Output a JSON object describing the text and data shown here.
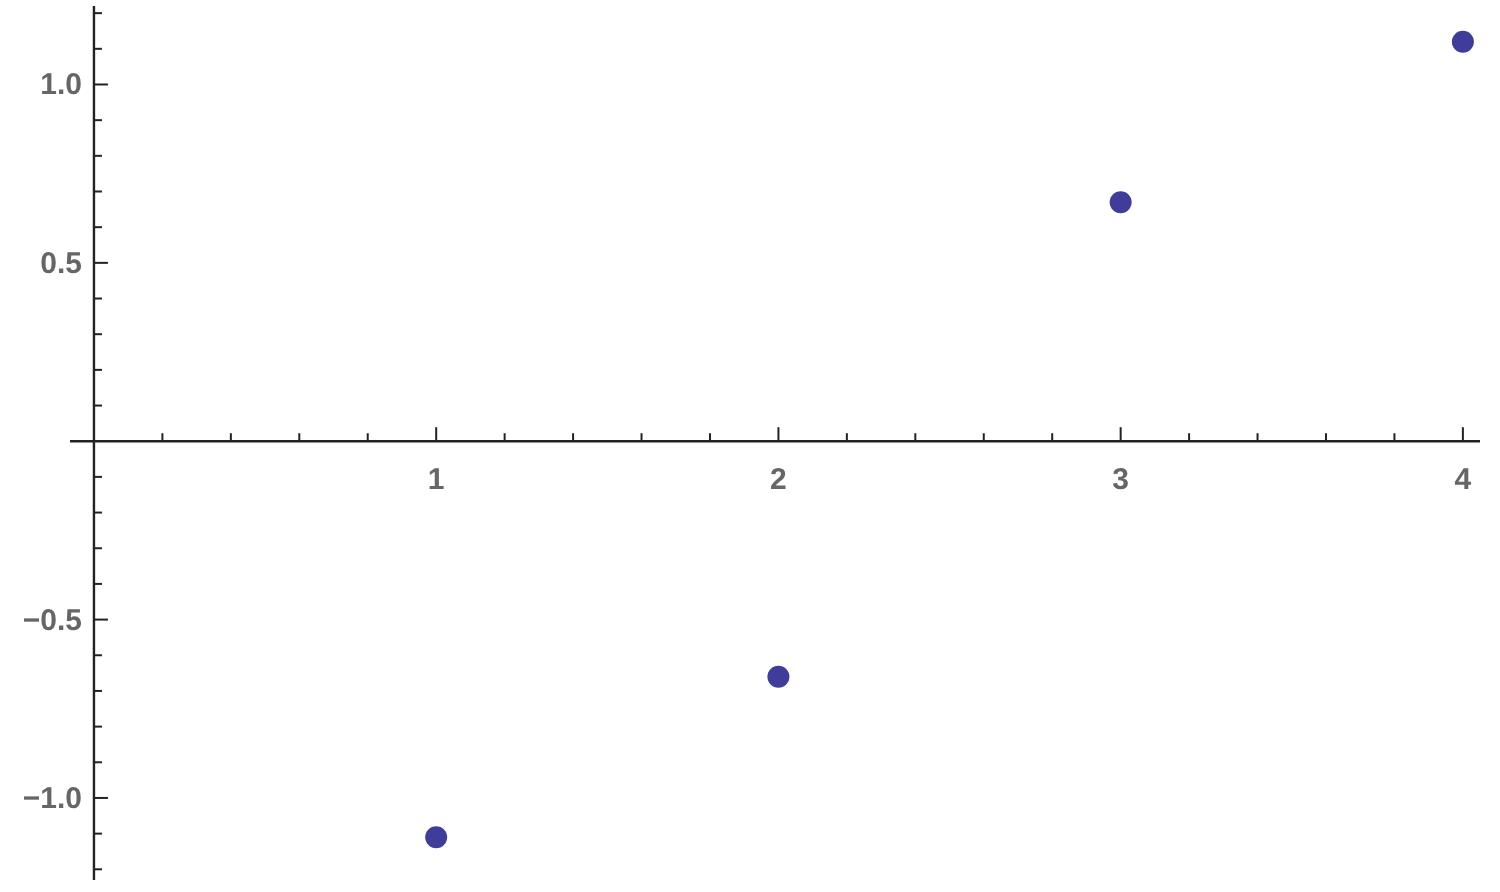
{
  "chart_data": {
    "type": "scatter",
    "x": [
      1,
      2,
      3,
      4
    ],
    "series": [
      {
        "color": "#3f3d99",
        "values": [
          -1.11,
          -0.66,
          0.67,
          1.12
        ]
      }
    ],
    "marker": "circle",
    "xlim": [
      -0.07,
      4.05
    ],
    "ylim": [
      -1.23,
      1.22
    ],
    "xticks": [
      {
        "value": 0.2,
        "label": null
      },
      {
        "value": 0.4,
        "label": null
      },
      {
        "value": 0.6,
        "label": null
      },
      {
        "value": 0.8,
        "label": null
      },
      1,
      {
        "value": 1.2,
        "label": null
      },
      {
        "value": 1.4,
        "label": null
      },
      {
        "value": 1.6,
        "label": null
      },
      {
        "value": 1.8,
        "label": null
      },
      2,
      {
        "value": 2.2,
        "label": null
      },
      {
        "value": 2.4,
        "label": null
      },
      {
        "value": 2.6,
        "label": null
      },
      {
        "value": 2.8,
        "label": null
      },
      3,
      {
        "value": 3.2,
        "label": null
      },
      {
        "value": 3.4,
        "label": null
      },
      {
        "value": 3.6,
        "label": null
      },
      {
        "value": 3.8,
        "label": null
      },
      4
    ],
    "yticks": [
      {
        "value": -1.2,
        "label": null
      },
      {
        "value": -1.1,
        "label": null
      },
      {
        "value": -1,
        "label": "−1.0"
      },
      {
        "value": -0.9,
        "label": null
      },
      {
        "value": -0.8,
        "label": null
      },
      {
        "value": -0.7,
        "label": null
      },
      {
        "value": -0.6,
        "label": null
      },
      {
        "value": -0.5,
        "label": "−0.5"
      },
      {
        "value": -0.4,
        "label": null
      },
      {
        "value": -0.3,
        "label": null
      },
      {
        "value": -0.2,
        "label": null
      },
      {
        "value": -0.1,
        "label": null
      },
      {
        "value": 0.1,
        "label": null
      },
      {
        "value": 0.2,
        "label": null
      },
      {
        "value": 0.3,
        "label": null
      },
      {
        "value": 0.4,
        "label": null
      },
      {
        "value": 0.5,
        "label": "0.5"
      },
      {
        "value": 0.6,
        "label": null
      },
      {
        "value": 0.7,
        "label": null
      },
      {
        "value": 0.8,
        "label": null
      },
      {
        "value": 0.9,
        "label": null
      },
      {
        "value": 1,
        "label": "1.0"
      },
      {
        "value": 1.1,
        "label": null
      },
      {
        "value": 1.2,
        "label": null
      }
    ]
  }
}
